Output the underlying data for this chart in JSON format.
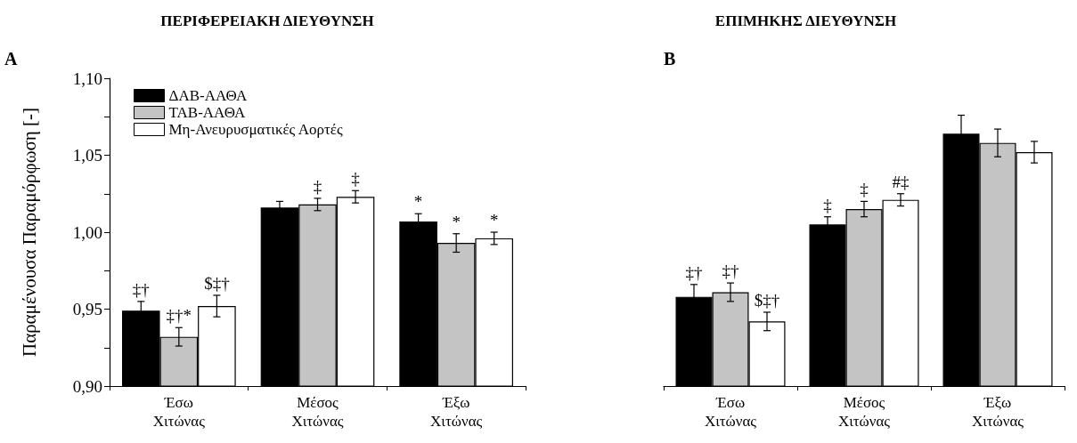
{
  "chart_data": [
    {
      "type": "bar",
      "title": "ΠΕΡΙΦΕΡΕΙΑΚΗ ΔΙΕΥΘΥΝΣΗ",
      "ylabel": "Παραμένουσα Παραμόρφωση [-]",
      "categories": [
        "Έσω\nΧιτώνας",
        "Μέσος\nΧιτώνας",
        "Έξω\nΧιτώνας"
      ],
      "series": [
        {
          "name": "ΔΑΒ-ΑΑΘΑ",
          "color": "#000000",
          "values": [
            0.949,
            1.016,
            1.007
          ],
          "errors": [
            0.006,
            0.004,
            0.005
          ]
        },
        {
          "name": "ΤΑΒ-ΑΑΘΑ",
          "color": "#c4c4c4",
          "values": [
            0.932,
            1.018,
            0.993
          ],
          "errors": [
            0.006,
            0.004,
            0.006
          ]
        },
        {
          "name": "Μη-Ανευρυσματικές Αορτές",
          "color": "#ffffff",
          "values": [
            0.952,
            1.023,
            0.996
          ],
          "errors": [
            0.007,
            0.004,
            0.004
          ]
        }
      ],
      "ylim": [
        0.9,
        1.1
      ],
      "yticks": [
        {
          "value": 0.9,
          "label": "0,90"
        },
        {
          "value": 0.925,
          "label": null
        },
        {
          "value": 0.95,
          "label": "0,95"
        },
        {
          "value": 0.975,
          "label": null
        },
        {
          "value": 1.0,
          "label": "1,00"
        },
        {
          "value": 1.025,
          "label": null
        },
        {
          "value": 1.05,
          "label": "1,05"
        },
        {
          "value": 1.075,
          "label": null
        },
        {
          "value": 1.1,
          "label": "1,10"
        }
      ],
      "grid": false,
      "legend": "top left",
      "annotations": [
        "A",
        "‡†",
        "‡†*",
        "$‡†",
        "‡",
        "‡",
        "*",
        "*",
        "*"
      ]
    },
    {
      "type": "bar",
      "title": "ΕΠΙΜΗΚΗΣ ΔΙΕΥΘΥΝΣΗ",
      "categories": [
        "Έσω\nΧιτώνας",
        "Μέσος\nΧιτώνας",
        "Έξω\nΧιτώνας"
      ],
      "series": [
        {
          "color": "#000000",
          "values": [
            0.958,
            1.005,
            1.064
          ],
          "errors": [
            0.008,
            0.005,
            0.012
          ]
        },
        {
          "color": "#c4c4c4",
          "values": [
            0.961,
            1.015,
            1.058
          ],
          "errors": [
            0.006,
            0.005,
            0.009
          ]
        },
        {
          "color": "#ffffff",
          "values": [
            0.942,
            1.021,
            1.052
          ],
          "errors": [
            0.006,
            0.004,
            0.007
          ]
        }
      ],
      "ylim": [
        0.9,
        1.1
      ],
      "tick_labels": "x",
      "grid": false,
      "legend": false,
      "annotations": [
        "B",
        "‡†",
        "‡†",
        "$‡†",
        "‡",
        "‡",
        "#‡"
      ]
    }
  ]
}
